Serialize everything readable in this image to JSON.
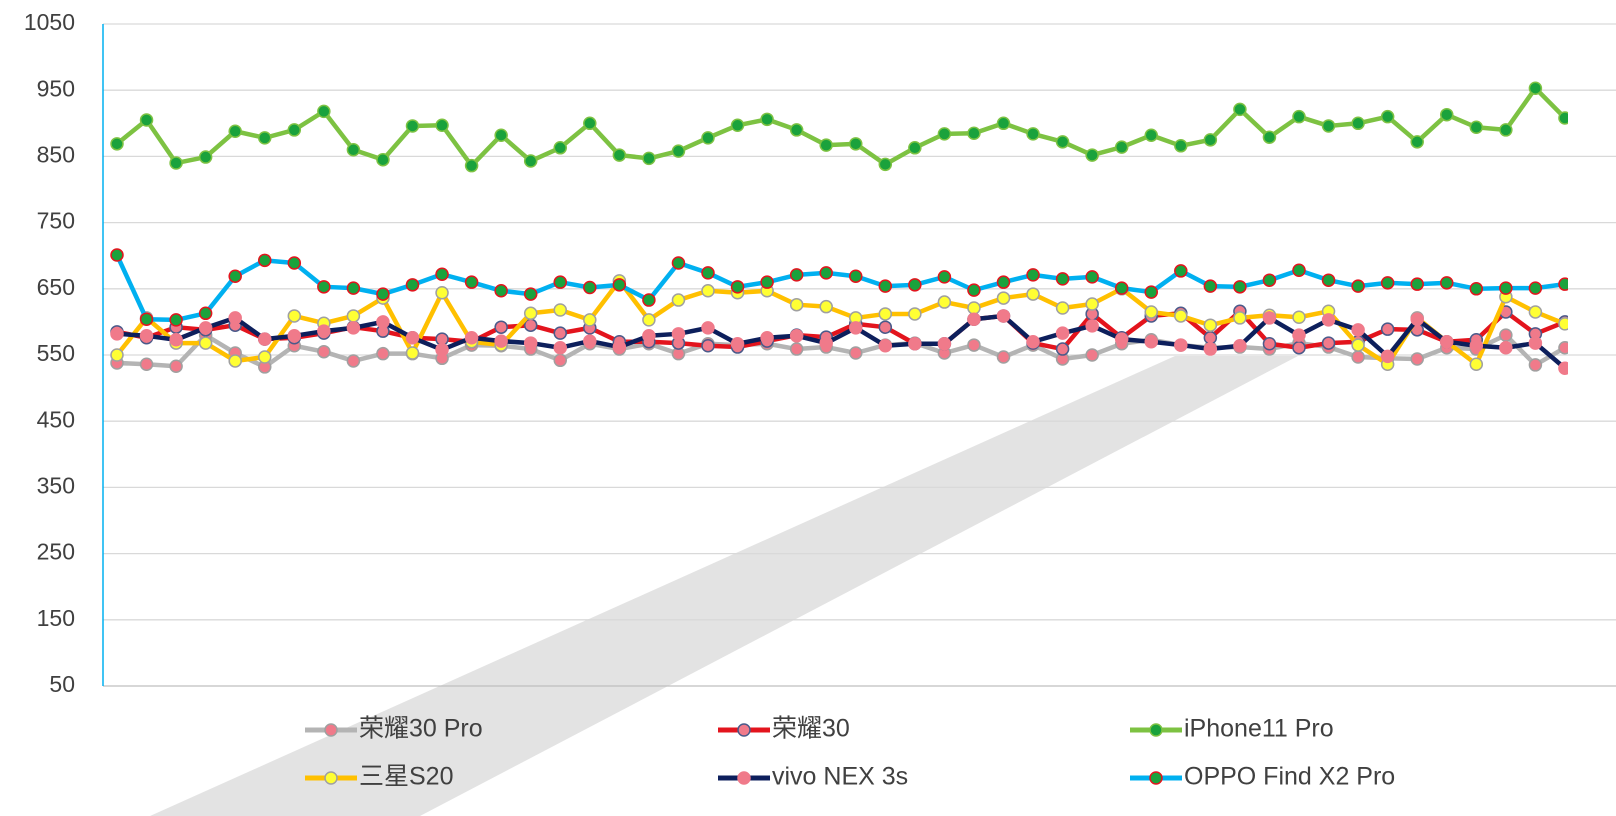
{
  "chart_data": {
    "type": "line",
    "ylim": [
      50,
      1050
    ],
    "yticks": [
      50,
      150,
      250,
      350,
      450,
      550,
      650,
      750,
      850,
      950,
      1050
    ],
    "grid": true,
    "legend": "bottom",
    "series": [
      {
        "name": "荣耀30 Pro",
        "color": "#b4b4b4",
        "marker": "#f07a8a",
        "marker_edge": "#a0a0a0",
        "values": [
          538,
          536,
          533,
          580,
          553,
          532,
          564,
          555,
          541,
          552,
          552,
          545,
          565,
          564,
          559,
          542,
          567,
          559,
          567,
          552,
          567,
          565,
          567,
          559,
          562,
          553,
          565,
          568,
          553,
          565,
          547,
          565,
          544,
          550,
          567,
          573,
          565,
          561,
          562,
          559,
          568,
          562,
          547,
          545,
          544,
          561,
          559,
          580,
          535,
          561
        ]
      },
      {
        "name": "荣耀30",
        "color": "#e3141d",
        "marker": "#f07a8a",
        "marker_edge": "#4a5a8a",
        "values": [
          585,
          576,
          592,
          588,
          595,
          574,
          576,
          583,
          592,
          586,
          576,
          574,
          570,
          592,
          595,
          583,
          591,
          570,
          570,
          568,
          564,
          562,
          571,
          580,
          577,
          597,
          592,
          567,
          567,
          604,
          609,
          568,
          559,
          612,
          576,
          609,
          613,
          576,
          616,
          567,
          561,
          568,
          570,
          589,
          588,
          570,
          573,
          615,
          582,
          600
        ]
      },
      {
        "name": "iPhone11 Pro",
        "color": "#7dc242",
        "marker": "#1aa23c",
        "marker_edge": "#7dc242",
        "values": [
          869,
          905,
          840,
          849,
          888,
          878,
          890,
          918,
          860,
          845,
          896,
          897,
          836,
          882,
          843,
          863,
          900,
          852,
          847,
          858,
          878,
          897,
          906,
          890,
          867,
          869,
          838,
          863,
          884,
          885,
          900,
          884,
          872,
          852,
          864,
          882,
          866,
          875,
          921,
          879,
          910,
          896,
          900,
          910,
          872,
          913,
          894,
          890,
          953,
          908
        ]
      },
      {
        "name": "三星S20",
        "color": "#ffc000",
        "marker": "#ffff33",
        "marker_edge": "#a0a0a0",
        "values": [
          550,
          606,
          568,
          568,
          541,
          547,
          609,
          598,
          609,
          636,
          553,
          644,
          570,
          565,
          613,
          618,
          603,
          662,
          603,
          633,
          647,
          644,
          647,
          626,
          623,
          606,
          612,
          612,
          630,
          621,
          636,
          642,
          621,
          627,
          650,
          615,
          609,
          595,
          606,
          610,
          607,
          616,
          565,
          536,
          606,
          570,
          536,
          638,
          615,
          597
        ]
      },
      {
        "name": "vivo NEX 3s",
        "color": "#0d1f5c",
        "marker": "#f07a8a",
        "marker_edge": "#f07a8a",
        "values": [
          582,
          579,
          573,
          591,
          606,
          574,
          579,
          586,
          591,
          600,
          576,
          558,
          576,
          571,
          568,
          561,
          571,
          562,
          579,
          582,
          591,
          567,
          576,
          579,
          568,
          591,
          564,
          567,
          567,
          604,
          609,
          570,
          583,
          594,
          574,
          570,
          565,
          559,
          564,
          606,
          580,
          603,
          588,
          548,
          604,
          570,
          564,
          561,
          568,
          530
        ]
      },
      {
        "name": "OPPO Find X2 Pro",
        "color": "#00b0f0",
        "marker": "#1aa23c",
        "marker_edge": "#e3141d",
        "values": [
          701,
          604,
          603,
          613,
          669,
          693,
          689,
          653,
          651,
          642,
          656,
          672,
          660,
          647,
          642,
          660,
          652,
          656,
          633,
          689,
          674,
          653,
          660,
          671,
          674,
          669,
          654,
          656,
          668,
          648,
          660,
          671,
          665,
          668,
          651,
          645,
          677,
          654,
          653,
          663,
          678,
          663,
          654,
          659,
          657,
          659,
          650,
          651,
          651,
          657
        ]
      }
    ]
  }
}
